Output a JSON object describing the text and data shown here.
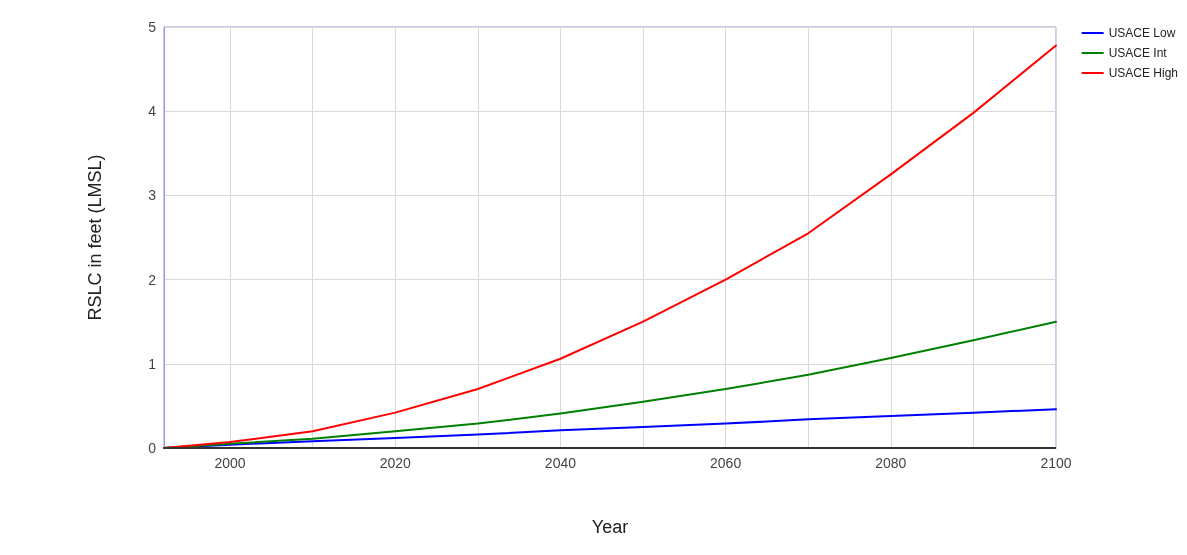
{
  "chart_data": {
    "type": "line",
    "xlabel": "Year",
    "ylabel": "RSLC in feet (LMSL)",
    "x": [
      1992,
      2000,
      2010,
      2020,
      2030,
      2040,
      2050,
      2060,
      2070,
      2080,
      2090,
      2100
    ],
    "series": [
      {
        "name": "USACE Low",
        "color": "#0000ff",
        "values": [
          0,
          0.04,
          0.08,
          0.12,
          0.16,
          0.21,
          0.25,
          0.29,
          0.34,
          0.38,
          0.42,
          0.46
        ]
      },
      {
        "name": "USACE Int",
        "color": "#008000",
        "values": [
          0,
          0.05,
          0.11,
          0.2,
          0.29,
          0.41,
          0.55,
          0.7,
          0.87,
          1.07,
          1.28,
          1.5
        ]
      },
      {
        "name": "USACE High",
        "color": "#ff0000",
        "values": [
          0,
          0.07,
          0.2,
          0.42,
          0.7,
          1.06,
          1.5,
          2.0,
          2.55,
          3.25,
          3.98,
          4.78
        ]
      }
    ],
    "xlim": [
      1992,
      2100
    ],
    "xticks": [
      2000,
      {
        "value": 2010,
        "label": null
      },
      2020,
      {
        "value": 2030,
        "label": null
      },
      2040,
      {
        "value": 2050,
        "label": null
      },
      2060,
      {
        "value": 2070,
        "label": null
      },
      2080,
      {
        "value": 2090,
        "label": null
      },
      2100
    ],
    "ylim": [
      0,
      5
    ],
    "yticks": [
      0,
      1,
      2,
      3,
      4,
      5
    ],
    "grid": true,
    "legend": "top right",
    "marker": "none",
    "line_style": "solid"
  }
}
